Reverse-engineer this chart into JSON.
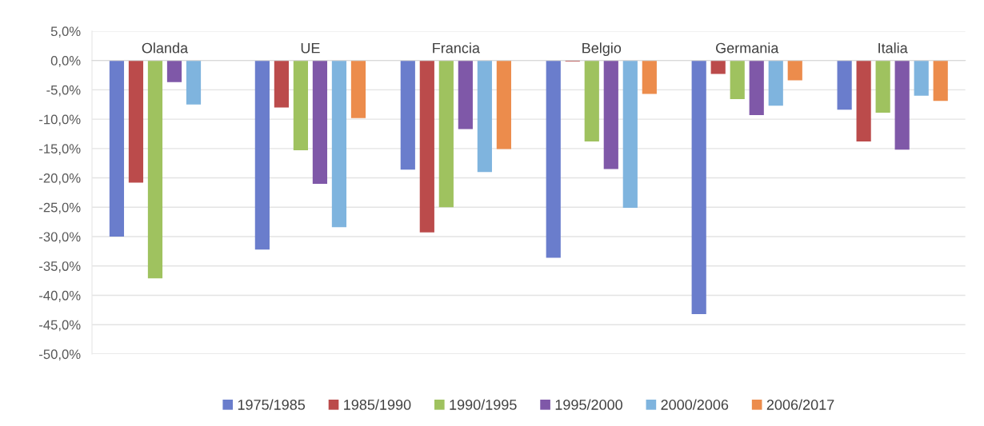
{
  "chart_data": {
    "type": "bar",
    "categories": [
      "Olanda",
      "UE",
      "Francia",
      "Belgio",
      "Germania",
      "Italia"
    ],
    "series": [
      {
        "name": "1975/1985",
        "color": "#6a7dcc",
        "values": [
          -30.0,
          -32.2,
          -18.6,
          -33.6,
          -43.2,
          -8.4
        ]
      },
      {
        "name": "1985/1990",
        "color": "#bb4b4b",
        "values": [
          -20.8,
          -8.0,
          -29.3,
          -0.2,
          -2.3,
          -13.8
        ]
      },
      {
        "name": "1990/1995",
        "color": "#9fc25f",
        "values": [
          -37.1,
          -15.3,
          -25.0,
          -13.8,
          -6.6,
          -8.9
        ]
      },
      {
        "name": "1995/2000",
        "color": "#7f58a8",
        "values": [
          -3.7,
          -21.0,
          -11.7,
          -18.5,
          -9.3,
          -15.2
        ]
      },
      {
        "name": "2000/2006",
        "color": "#7fb4de",
        "values": [
          -7.5,
          -28.4,
          -19.0,
          -25.1,
          -7.7,
          -6.0
        ]
      },
      {
        "name": "2006/2017",
        "color": "#ec8c4c",
        "values": [
          null,
          -9.8,
          -15.1,
          -5.7,
          -3.4,
          -6.9
        ]
      }
    ],
    "ylim": [
      -50,
      5
    ],
    "yticks": [
      {
        "value": 5,
        "label": "5,0%"
      },
      {
        "value": 0,
        "label": "0,0%"
      },
      {
        "value": -5,
        "label": "-5,0%"
      },
      {
        "value": -10,
        "label": "-10,0%"
      },
      {
        "value": -15,
        "label": "-15,0%"
      },
      {
        "value": -20,
        "label": "-20,0%"
      },
      {
        "value": -25,
        "label": "-25,0%"
      },
      {
        "value": -30,
        "label": "-30,0%"
      },
      {
        "value": -35,
        "label": "-35,0%"
      },
      {
        "value": -40,
        "label": "-40,0%"
      },
      {
        "value": -45,
        "label": "-45,0%"
      },
      {
        "value": -50,
        "label": "-50,0%"
      }
    ],
    "grid": "y",
    "legend": "bottom"
  }
}
